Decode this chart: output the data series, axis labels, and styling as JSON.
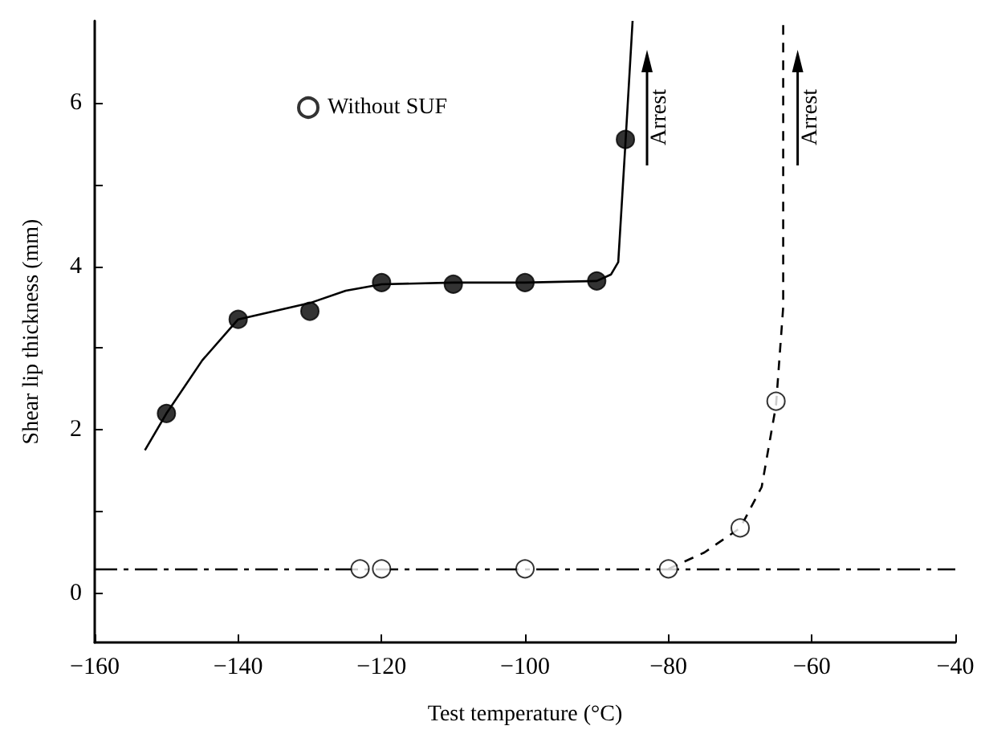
{
  "chart_data": {
    "type": "scatter",
    "xlabel": "Test temperature (°C)",
    "ylabel": "Shear lip thickness (mm)",
    "xlim": [
      -160,
      -40
    ],
    "xticks": [
      -160,
      -140,
      -120,
      -100,
      -80,
      -60,
      -40
    ],
    "ylim": [
      -0.6,
      7
    ],
    "yticks": [
      0,
      {
        "value": 1,
        "label": null
      },
      2,
      {
        "value": 3,
        "label": null
      },
      4,
      {
        "value": 5,
        "label": null
      },
      6
    ],
    "grid": false,
    "legend": "top left",
    "marker": "circle",
    "series": [
      {
        "color": "#000000",
        "x": [
          -150,
          -140,
          -130,
          -120,
          -110,
          -100,
          -90,
          -86
        ],
        "values": [
          2.2,
          3.35,
          3.45,
          3.8,
          3.78,
          3.8,
          3.82,
          5.55
        ]
      },
      {
        "type": "line",
        "marker": "none",
        "color": "#000000",
        "line_style": "solid",
        "x": [
          -153,
          -150,
          -145,
          -140,
          -135,
          -130,
          -125,
          -120,
          -110,
          -100,
          -90,
          -88,
          -87,
          -86,
          -85
        ],
        "values": [
          1.75,
          2.2,
          2.85,
          3.35,
          3.45,
          3.55,
          3.7,
          3.78,
          3.8,
          3.8,
          3.82,
          3.9,
          4.05,
          5.5,
          7
        ]
      },
      {
        "name": "Without SUF",
        "color": "#ffffff",
        "x": [
          -123,
          -120,
          -100,
          -80,
          -70,
          -65
        ],
        "values": [
          0.3,
          0.3,
          0.3,
          0.3,
          0.8,
          2.35
        ]
      },
      {
        "type": "line",
        "marker": "none",
        "color": "#000000",
        "line_style": "dashed",
        "x": [
          -80,
          -75,
          -70,
          -67,
          -65,
          -64,
          -64
        ],
        "values": [
          0.3,
          0.5,
          0.8,
          1.3,
          2.3,
          3.5,
          7
        ]
      }
    ],
    "ref_lines": [
      {
        "axis": "y",
        "value": 0.3,
        "label": null,
        "color": "#000000",
        "line_style": "dashed"
      }
    ],
    "annotations": [
      "Arrest",
      "Arrest"
    ]
  }
}
